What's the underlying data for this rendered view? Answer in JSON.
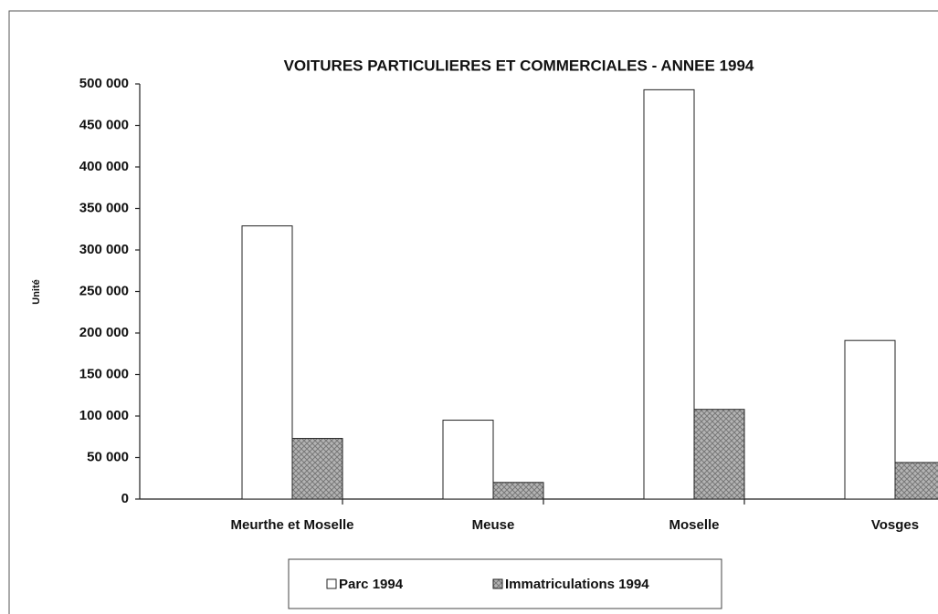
{
  "chart_data": {
    "type": "bar",
    "title": "VOITURES PARTICULIERES ET COMMERCIALES - ANNEE 1994",
    "y_label": "Unité",
    "categories": [
      "Meurthe et Moselle",
      "Meuse",
      "Moselle",
      "Vosges"
    ],
    "series": [
      {
        "name": "Parc 1994",
        "color": "#ffffff",
        "values": [
          329000,
          95000,
          493000,
          191000
        ]
      },
      {
        "name": "Immatriculations 1994",
        "color": "#b4b4b4",
        "values": [
          73000,
          20000,
          108000,
          44000
        ]
      }
    ],
    "ylim": [
      0,
      500000
    ],
    "yticks": [
      0,
      {
        "value": 50000,
        "label": "50 000"
      },
      {
        "value": 100000,
        "label": "100 000"
      },
      {
        "value": 150000,
        "label": "150 000"
      },
      {
        "value": 200000,
        "label": "200 000"
      },
      {
        "value": 250000,
        "label": "250 000"
      },
      {
        "value": 300000,
        "label": "300 000"
      },
      {
        "value": 350000,
        "label": "350 000"
      },
      {
        "value": 400000,
        "label": "400 000"
      },
      {
        "value": 450000,
        "label": "450 000"
      },
      {
        "value": 500000,
        "label": "500 000"
      }
    ],
    "grid": false,
    "legend": "bottom"
  }
}
